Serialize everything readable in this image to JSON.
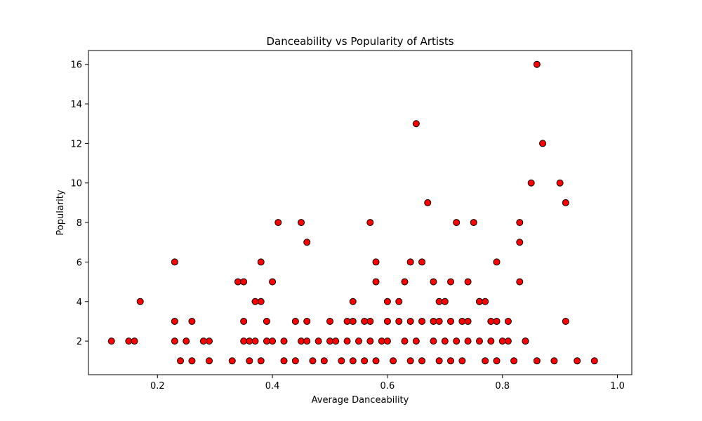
{
  "chart_data": {
    "type": "scatter",
    "title": "Danceability vs Popularity of Artists",
    "xlabel": "Average Danceability",
    "ylabel": "Popularity",
    "xlim": [
      0.08,
      1.025
    ],
    "ylim": [
      0.3,
      16.7
    ],
    "xticks": [
      0.2,
      0.4,
      0.6,
      0.8,
      1.0
    ],
    "yticks": [
      2,
      4,
      6,
      8,
      10,
      12,
      14,
      16
    ],
    "grid": false,
    "marker_color": "#ff0000",
    "marker_edge_color": "#000000",
    "series": [
      {
        "x": [
          0.12,
          0.15,
          0.16,
          0.23,
          0.17,
          0.26,
          0.34,
          0.35,
          0.38,
          0.41,
          0.45,
          0.46,
          0.38,
          0.4,
          0.23,
          0.57,
          0.58,
          0.65,
          0.67,
          0.72,
          0.75,
          0.76,
          0.79,
          0.83,
          0.85,
          0.86,
          0.87,
          0.9,
          0.91,
          0.83,
          0.23,
          0.25,
          0.28,
          0.29,
          0.35,
          0.37,
          0.39,
          0.4,
          0.42,
          0.45,
          0.46,
          0.48,
          0.5,
          0.51,
          0.53,
          0.55,
          0.57,
          0.59,
          0.6,
          0.63,
          0.65,
          0.68,
          0.7,
          0.72,
          0.74,
          0.76,
          0.78,
          0.8,
          0.81,
          0.84,
          0.91,
          0.24,
          0.26,
          0.29,
          0.33,
          0.36,
          0.38,
          0.42,
          0.44,
          0.47,
          0.49,
          0.52,
          0.54,
          0.56,
          0.58,
          0.61,
          0.64,
          0.66,
          0.69,
          0.71,
          0.73,
          0.77,
          0.79,
          0.82,
          0.86,
          0.89,
          0.93,
          0.96,
          0.35,
          0.44,
          0.46,
          0.5,
          0.53,
          0.54,
          0.57,
          0.6,
          0.62,
          0.64,
          0.66,
          0.68,
          0.69,
          0.71,
          0.73,
          0.79,
          0.81,
          0.36,
          0.37,
          0.39,
          0.54,
          0.56,
          0.58,
          0.62,
          0.69,
          0.71,
          0.76,
          0.77,
          0.84,
          0.63,
          0.66,
          0.68,
          0.7,
          0.74,
          0.6,
          0.64,
          0.74,
          0.78,
          0.83
        ],
        "y": [
          2,
          2,
          2,
          3,
          4,
          3,
          5,
          5,
          6,
          8,
          8,
          7,
          4,
          5,
          6,
          8,
          6,
          13,
          9,
          8,
          8,
          4,
          6,
          8,
          10,
          16,
          12,
          10,
          9,
          5,
          2,
          2,
          2,
          2,
          2,
          2,
          2,
          2,
          2,
          2,
          2,
          2,
          2,
          2,
          2,
          2,
          2,
          2,
          2,
          2,
          2,
          2,
          2,
          2,
          2,
          2,
          2,
          2,
          2,
          2,
          3,
          1,
          1,
          1,
          1,
          1,
          1,
          1,
          1,
          1,
          1,
          1,
          1,
          1,
          1,
          1,
          1,
          1,
          1,
          1,
          1,
          1,
          1,
          1,
          1,
          1,
          1,
          1,
          3,
          3,
          3,
          3,
          3,
          3,
          3,
          3,
          3,
          3,
          3,
          3,
          3,
          3,
          3,
          3,
          3,
          2,
          4,
          3,
          4,
          3,
          5,
          4,
          4,
          5,
          4,
          4,
          2,
          5,
          6,
          5,
          4,
          5,
          4,
          6,
          3,
          3,
          7
        ]
      }
    ]
  }
}
